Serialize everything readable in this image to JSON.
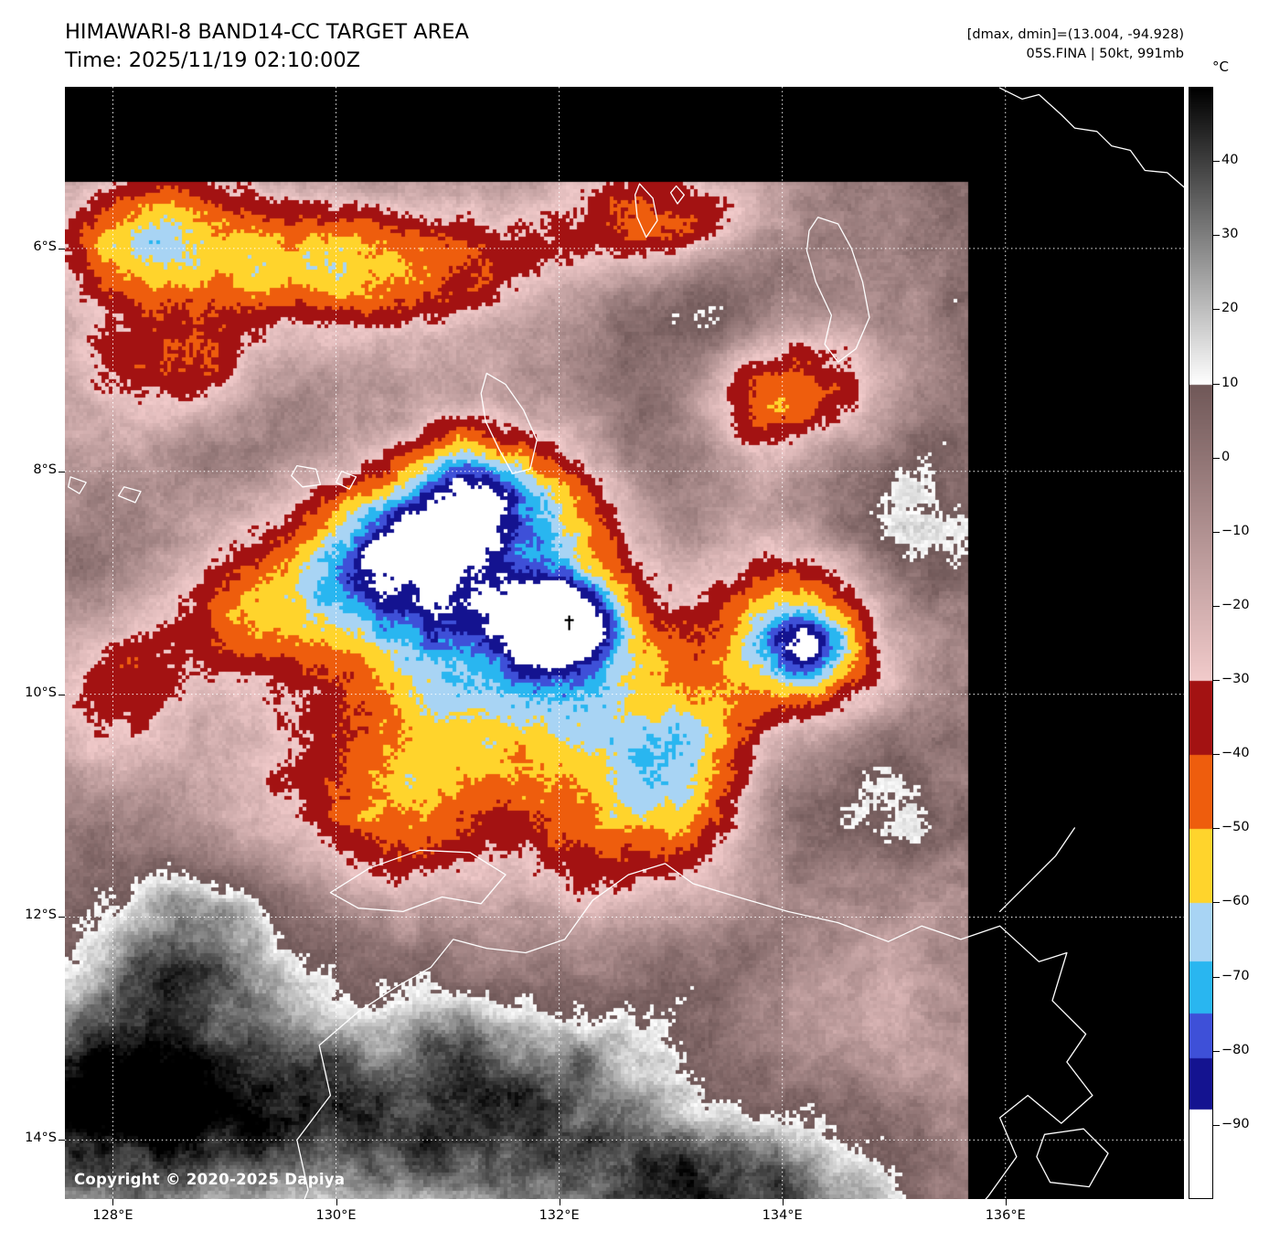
{
  "header": {
    "title": "HIMAWARI-8 BAND14-CC TARGET AREA",
    "time": "Time: 2025/11/19 02:10:00Z",
    "dmax_dmin": "[dmax, dmin]=(13.004, -94.928)",
    "storm_info": "05S.FINA | 50kt, 991mb"
  },
  "watermark": "Copyright © 2020-2025 Dapiya",
  "axes": {
    "lat_ticks": [
      {
        "label": "6°S",
        "value": 6
      },
      {
        "label": "8°S",
        "value": 8
      },
      {
        "label": "10°S",
        "value": 10
      },
      {
        "label": "12°S",
        "value": 12
      },
      {
        "label": "14°S",
        "value": 14
      }
    ],
    "lon_ticks": [
      {
        "label": "128°E",
        "value": 128
      },
      {
        "label": "130°E",
        "value": 130
      },
      {
        "label": "132°E",
        "value": 132
      },
      {
        "label": "134°E",
        "value": 134
      },
      {
        "label": "136°E",
        "value": 136
      }
    ]
  },
  "colorbar": {
    "unit": "°C",
    "max": 50,
    "min": -100,
    "ticks": [
      {
        "label": "40",
        "value": 40
      },
      {
        "label": "30",
        "value": 30
      },
      {
        "label": "20",
        "value": 20
      },
      {
        "label": "10",
        "value": 10
      },
      {
        "label": "0",
        "value": 0
      },
      {
        "label": "−10",
        "value": -10
      },
      {
        "label": "−20",
        "value": -20
      },
      {
        "label": "−30",
        "value": -30
      },
      {
        "label": "−40",
        "value": -40
      },
      {
        "label": "−50",
        "value": -50
      },
      {
        "label": "−60",
        "value": -60
      },
      {
        "label": "−70",
        "value": -70
      },
      {
        "label": "−80",
        "value": -80
      },
      {
        "label": "−90",
        "value": -90
      }
    ],
    "segments": [
      {
        "from": 50,
        "to": 10,
        "color_top": "#000000",
        "color_bottom": "#ffffff"
      },
      {
        "from": 10,
        "to": -30,
        "color_top": "#705858",
        "color_bottom": "#f2cbcb"
      },
      {
        "from": -30,
        "to": -40,
        "color": "#a31212"
      },
      {
        "from": -40,
        "to": -50,
        "color": "#ee5d0d"
      },
      {
        "from": -50,
        "to": -60,
        "color": "#ffd42c"
      },
      {
        "from": -60,
        "to": -68,
        "color": "#a8d4f4"
      },
      {
        "from": -68,
        "to": -75,
        "color": "#29b6f0"
      },
      {
        "from": -75,
        "to": -81,
        "color": "#3e50d8"
      },
      {
        "from": -81,
        "to": -88,
        "color": "#141390"
      },
      {
        "from": -88,
        "to": -100,
        "color": "#ffffff"
      }
    ]
  },
  "map": {
    "extent": {
      "lon_min": 127.57,
      "lon_max": 137.6,
      "lat_min": 4.55,
      "lat_max": 14.53
    },
    "data_extent": {
      "lon_min": 127.57,
      "lon_max": 135.68,
      "lat_min": 5.41,
      "lat_max": 14.53
    },
    "grid_lons": [
      128,
      130,
      132,
      134,
      136
    ],
    "grid_lats": [
      6,
      8,
      10,
      12,
      14
    ],
    "storm_center": {
      "lon": 132.09,
      "lat": 9.36
    }
  }
}
